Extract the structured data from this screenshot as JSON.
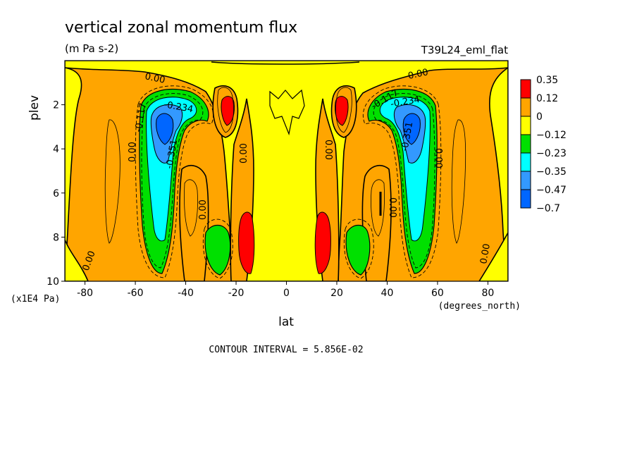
{
  "chart_data": {
    "type": "heatmap",
    "title": "vertical zonal momentum flux",
    "subtitle": "(m Pa s-2)",
    "run_label": "T39L24_eml_flat",
    "xlabel": "lat",
    "x_unit": "(degrees_north)",
    "ylabel": "plev",
    "y_unit": "(x1E4 Pa)",
    "xlim": [
      -88,
      88
    ],
    "ylim": [
      10,
      0
    ],
    "x_ticks": [
      "-80",
      "-60",
      "-40",
      "-20",
      "0",
      "20",
      "40",
      "60",
      "80"
    ],
    "y_ticks": [
      "2",
      "4",
      "6",
      "8",
      "10"
    ],
    "legend": {
      "placement": "right",
      "labels": [
        "0.35",
        "0.12",
        "0",
        "−0.12",
        "−0.23",
        "−0.35",
        "−0.47",
        "−0.7"
      ],
      "colors": [
        "#ff0000",
        "#ffa500",
        "#ffff00",
        "#00e000",
        "#00ffff",
        "#3399ff",
        "#0066ff"
      ]
    },
    "contour_interval_text": "CONTOUR INTERVAL = 5.856E-02",
    "contour_labels": [
      "0.00",
      "-0.117",
      "-0.234",
      "-0.351"
    ],
    "features": [
      {
        "lat": -50,
        "plev": 3,
        "value": -0.6
      },
      {
        "lat": 48,
        "plev": 3,
        "value": -0.6
      },
      {
        "lat": -25,
        "plev": 2.3,
        "value": 0.2
      },
      {
        "lat": 25,
        "plev": 2.3,
        "value": 0.2
      },
      {
        "lat": -17,
        "plev": 8,
        "value": 0.2
      },
      {
        "lat": 17,
        "plev": 8,
        "value": 0.2
      },
      {
        "lat": -30,
        "plev": 8.5,
        "value": -0.15
      },
      {
        "lat": 29,
        "plev": 8.5,
        "value": -0.15
      }
    ]
  }
}
